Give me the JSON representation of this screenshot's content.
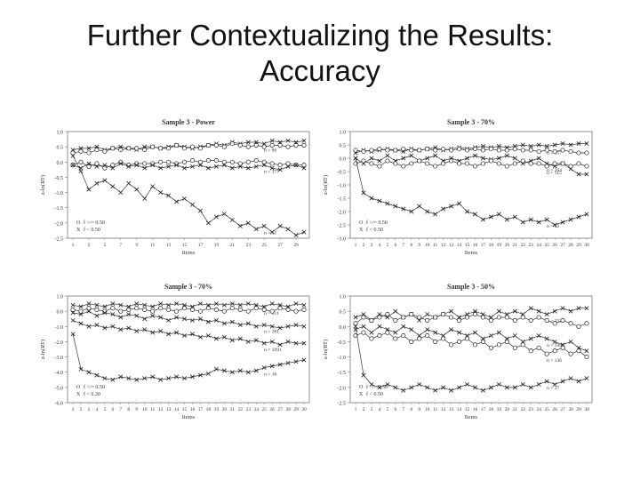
{
  "slide": {
    "title_line1": "Further Contextualizing the Results:",
    "title_line2": "Accuracy"
  },
  "chart_data": [
    {
      "type": "line",
      "title": "Sample 3 - Power",
      "xlabel": "Items",
      "ylabel": "z-ln(RT)",
      "ylim": [
        -2.5,
        1.0
      ],
      "y_ticks": [
        1.0,
        0.5,
        0.0,
        -0.5,
        -1.0,
        -1.5,
        -2.0,
        -2.5
      ],
      "x": [
        1,
        2,
        3,
        4,
        5,
        6,
        7,
        8,
        9,
        10,
        11,
        12,
        13,
        14,
        15,
        16,
        17,
        18,
        19,
        20,
        21,
        22,
        23,
        24,
        25,
        26,
        27,
        28,
        29,
        30
      ],
      "x_tick_labels": [
        "1",
        "3",
        "5",
        "7",
        "9",
        "11",
        "13",
        "15",
        "17",
        "19",
        "21",
        "23",
        "25",
        "27",
        "29"
      ],
      "legend": [
        {
          "marker": "O",
          "label": "f >/= 0.50"
        },
        {
          "marker": "X",
          "label": "f < 0.50"
        }
      ],
      "series": [
        {
          "marker": "X",
          "values": [
            0.4,
            0.45,
            0.45,
            0.5,
            0.4,
            0.45,
            0.5,
            0.45,
            0.4,
            0.5,
            0.5,
            0.45,
            0.5,
            0.55,
            0.5,
            0.45,
            0.5,
            0.55,
            0.6,
            0.55,
            0.65,
            0.6,
            0.65,
            0.65,
            0.6,
            0.7,
            0.65,
            0.7,
            0.65,
            0.7
          ],
          "n_label": "n = 86"
        },
        {
          "marker": "O",
          "values": [
            0.3,
            0.35,
            0.3,
            0.4,
            0.35,
            0.45,
            0.4,
            0.45,
            0.45,
            0.4,
            0.5,
            0.45,
            0.45,
            0.55,
            0.45,
            0.5,
            0.45,
            0.55,
            0.55,
            0.5,
            0.6,
            0.55,
            0.5,
            0.55,
            0.5,
            0.55,
            0.55,
            0.5,
            0.55,
            0.55
          ]
        },
        {
          "marker": "O",
          "values": [
            -0.1,
            0.0,
            -0.15,
            -0.05,
            -0.2,
            -0.1,
            0.0,
            -0.1,
            -0.05,
            -0.05,
            -0.05,
            0.0,
            0.0,
            -0.05,
            0.0,
            0.05,
            0.0,
            0.05,
            0.05,
            0.0,
            0.0,
            -0.05,
            0.0,
            0.05,
            0.0,
            -0.05,
            -0.1,
            -0.05,
            -0.1,
            -0.1
          ]
        },
        {
          "marker": "X",
          "values": [
            -0.1,
            -0.2,
            -0.05,
            -0.15,
            -0.1,
            -0.2,
            -0.05,
            -0.15,
            -0.1,
            -0.2,
            -0.1,
            -0.2,
            -0.15,
            -0.1,
            -0.2,
            -0.15,
            -0.1,
            -0.2,
            -0.15,
            -0.1,
            -0.2,
            -0.15,
            -0.2,
            -0.15,
            -0.1,
            -0.2,
            -0.25,
            -0.15,
            -0.1,
            -0.2
          ],
          "n_label": "n = 177"
        },
        {
          "marker": "X",
          "values": [
            0.2,
            -0.3,
            -0.9,
            -0.7,
            -0.6,
            -0.8,
            -1.0,
            -0.7,
            -0.9,
            -1.2,
            -0.8,
            -1.0,
            -1.1,
            -1.3,
            -1.2,
            -1.4,
            -1.6,
            -2.0,
            -1.8,
            -1.7,
            -1.9,
            -2.1,
            -2.0,
            -2.2,
            -2.1,
            -2.3,
            -2.1,
            -2.2,
            -2.4,
            -2.3
          ],
          "n_label": "n = 51"
        }
      ]
    },
    {
      "type": "line",
      "title": "Sample 3 - 70%",
      "xlabel": "Items",
      "ylabel": "z-ln(RT)",
      "ylim": [
        -3.0,
        1.0
      ],
      "y_ticks": [
        1.0,
        0.5,
        0.0,
        -0.5,
        -1.0,
        -1.5,
        -2.0,
        -2.5,
        -3.0
      ],
      "x": [
        1,
        2,
        3,
        4,
        5,
        6,
        7,
        8,
        9,
        10,
        11,
        12,
        13,
        14,
        15,
        16,
        17,
        18,
        19,
        20,
        21,
        22,
        23,
        24,
        25,
        26,
        27,
        28,
        29,
        30
      ],
      "x_tick_labels": [
        "1",
        "2",
        "3",
        "4",
        "5",
        "6",
        "7",
        "8",
        "9",
        "10",
        "11",
        "12",
        "13",
        "14",
        "15",
        "16",
        "17",
        "18",
        "19",
        "20",
        "21",
        "22",
        "23",
        "24",
        "25",
        "26",
        "27",
        "28",
        "29",
        "30"
      ],
      "legend": [
        {
          "marker": "O",
          "label": "f >/= 0.50"
        },
        {
          "marker": "X",
          "label": "f < 0.50"
        }
      ],
      "series": [
        {
          "marker": "X",
          "values": [
            0.2,
            0.3,
            0.25,
            0.3,
            0.35,
            0.3,
            0.25,
            0.35,
            0.3,
            0.35,
            0.4,
            0.3,
            0.35,
            0.4,
            0.35,
            0.4,
            0.45,
            0.4,
            0.45,
            0.4,
            0.45,
            0.5,
            0.45,
            0.5,
            0.45,
            0.5,
            0.55,
            0.5,
            0.55,
            0.55
          ],
          "n_label": "n = 357"
        },
        {
          "marker": "O",
          "values": [
            0.3,
            0.25,
            0.3,
            0.35,
            0.3,
            0.3,
            0.35,
            0.3,
            0.3,
            0.35,
            0.3,
            0.35,
            0.3,
            0.35,
            0.3,
            0.35,
            0.3,
            0.35,
            0.3,
            0.3,
            0.35,
            0.3,
            0.3,
            0.25,
            0.3,
            0.25,
            0.3,
            0.25,
            0.2,
            0.2
          ]
        },
        {
          "marker": "X",
          "values": [
            0.0,
            -0.2,
            0.0,
            -0.1,
            0.1,
            -0.1,
            0.0,
            0.1,
            -0.1,
            0.0,
            0.1,
            -0.1,
            0.0,
            -0.1,
            0.0,
            0.1,
            0.0,
            -0.05,
            0.0,
            0.1,
            0.0,
            -0.2,
            -0.1,
            0.0,
            -0.2,
            -0.3,
            -0.2,
            -0.4,
            -0.6,
            -0.6
          ],
          "n_label": "n = 264"
        },
        {
          "marker": "O",
          "values": [
            -0.2,
            -0.1,
            -0.2,
            -0.3,
            -0.1,
            -0.2,
            -0.3,
            -0.2,
            -0.1,
            -0.2,
            -0.3,
            -0.2,
            -0.1,
            -0.2,
            -0.2,
            -0.3,
            -0.2,
            -0.1,
            -0.2,
            -0.3,
            -0.2,
            -0.1,
            -0.2,
            -0.2,
            -0.3,
            -0.2,
            -0.2,
            -0.3,
            -0.2,
            -0.3
          ],
          "n_label": "n = 115"
        },
        {
          "marker": "X",
          "values": [
            0.0,
            -1.3,
            -1.5,
            -1.6,
            -1.7,
            -1.8,
            -1.9,
            -2.0,
            -1.8,
            -2.0,
            -2.1,
            -1.9,
            -1.8,
            -1.7,
            -2.0,
            -2.1,
            -2.3,
            -2.2,
            -2.1,
            -2.3,
            -2.2,
            -2.4,
            -2.3,
            -2.4,
            -2.3,
            -2.5,
            -2.4,
            -2.3,
            -2.2,
            -2.1
          ],
          "n_label": "n = 62"
        }
      ]
    },
    {
      "type": "line",
      "title": "Sample 3 - 70%",
      "xlabel": "Items",
      "ylabel": "z-ln(RT)",
      "ylim": [
        -6.0,
        1.0
      ],
      "y_ticks": [
        1.0,
        0.0,
        -1.0,
        -2.0,
        -3.0,
        -4.0,
        -5.0,
        -6.0
      ],
      "x": [
        1,
        2,
        3,
        4,
        5,
        6,
        7,
        8,
        9,
        10,
        11,
        12,
        13,
        14,
        15,
        16,
        17,
        18,
        19,
        20,
        21,
        22,
        23,
        24,
        25,
        26,
        27,
        28,
        29,
        30
      ],
      "x_tick_labels": [
        "1",
        "2",
        "3",
        "4",
        "5",
        "6",
        "7",
        "8",
        "9",
        "10",
        "11",
        "12",
        "13",
        "14",
        "15",
        "16",
        "17",
        "18",
        "19",
        "20",
        "21",
        "22",
        "23",
        "24",
        "25",
        "26",
        "27",
        "28",
        "29",
        "30"
      ],
      "legend": [
        {
          "marker": "O",
          "label": "f >/= 0.50"
        },
        {
          "marker": "X",
          "label": "f < 0.20"
        }
      ],
      "series": [
        {
          "marker": "X",
          "values": [
            0.4,
            0.3,
            0.5,
            0.4,
            0.3,
            0.5,
            0.4,
            0.3,
            0.5,
            0.4,
            0.3,
            0.5,
            0.4,
            0.5,
            0.4,
            0.3,
            0.5,
            0.4,
            0.5,
            0.4,
            0.5,
            0.4,
            0.5,
            0.4,
            0.3,
            0.5,
            0.4,
            0.3,
            0.5,
            0.4
          ],
          "n_label": "n = 511"
        },
        {
          "marker": "O",
          "values": [
            0.1,
            0.0,
            0.2,
            0.1,
            0.0,
            0.2,
            0.0,
            0.1,
            0.2,
            0.1,
            0.0,
            0.2,
            0.1,
            0.0,
            0.2,
            0.1,
            0.0,
            0.2,
            0.1,
            0.0,
            0.2,
            0.1,
            0.0,
            0.2,
            0.1,
            0.0,
            0.2,
            0.1,
            0.0,
            0.1
          ]
        },
        {
          "marker": "X",
          "values": [
            -0.1,
            -0.2,
            0.0,
            -0.3,
            -0.1,
            -0.2,
            -0.4,
            -0.2,
            -0.3,
            -0.5,
            -0.3,
            -0.4,
            -0.6,
            -0.4,
            -0.5,
            -0.6,
            -0.5,
            -0.7,
            -0.6,
            -0.8,
            -0.7,
            -0.9,
            -0.8,
            -1.0,
            -0.9,
            -1.0,
            -1.1,
            -1.0,
            -0.9,
            -1.0
          ],
          "n_label": "n = 381"
        },
        {
          "marker": "X",
          "values": [
            -0.6,
            -0.8,
            -1.0,
            -0.9,
            -1.1,
            -1.0,
            -1.2,
            -1.1,
            -1.3,
            -1.2,
            -1.4,
            -1.3,
            -1.5,
            -1.4,
            -1.6,
            -1.5,
            -1.7,
            -1.6,
            -1.8,
            -1.7,
            -1.9,
            -1.8,
            -2.0,
            -1.9,
            -2.1,
            -2.0,
            -2.2,
            -2.0,
            -2.1,
            -2.1
          ],
          "n_label": "n = 1091"
        },
        {
          "marker": "X",
          "values": [
            -1.5,
            -3.8,
            -4.0,
            -4.2,
            -4.4,
            -4.5,
            -4.3,
            -4.4,
            -4.5,
            -4.4,
            -4.3,
            -4.5,
            -4.4,
            -4.3,
            -4.4,
            -4.3,
            -4.2,
            -4.1,
            -3.8,
            -3.9,
            -4.0,
            -3.9,
            -4.0,
            -3.9,
            -3.7,
            -3.6,
            -3.5,
            -3.4,
            -3.3,
            -3.2
          ],
          "n_label": "n = 16"
        }
      ]
    },
    {
      "type": "line",
      "title": "Sample 3 - 50%",
      "xlabel": "Items",
      "ylabel": "z-ln(RT)",
      "ylim": [
        -2.5,
        1.0
      ],
      "y_ticks": [
        1.0,
        0.5,
        0.0,
        -0.5,
        -1.0,
        -1.5,
        -2.0,
        -2.5
      ],
      "x": [
        1,
        2,
        3,
        4,
        5,
        6,
        7,
        8,
        9,
        10,
        11,
        12,
        13,
        14,
        15,
        16,
        17,
        18,
        19,
        20,
        21,
        22,
        23,
        24,
        25,
        26,
        27,
        28,
        29,
        30
      ],
      "x_tick_labels": [
        "1",
        "2",
        "3",
        "4",
        "5",
        "6",
        "7",
        "8",
        "9",
        "10",
        "11",
        "12",
        "13",
        "14",
        "15",
        "16",
        "17",
        "18",
        "19",
        "20",
        "21",
        "22",
        "23",
        "24",
        "25",
        "26",
        "27",
        "28",
        "29",
        "30"
      ],
      "legend": [
        {
          "marker": "O",
          "label": "f >/= 0.50"
        },
        {
          "marker": "X",
          "label": "f < 0.50"
        }
      ],
      "series": [
        {
          "marker": "X",
          "values": [
            0.3,
            0.4,
            0.2,
            0.4,
            0.3,
            0.5,
            0.3,
            0.4,
            0.2,
            0.4,
            0.3,
            0.4,
            0.5,
            0.3,
            0.4,
            0.5,
            0.4,
            0.3,
            0.5,
            0.4,
            0.5,
            0.4,
            0.6,
            0.5,
            0.4,
            0.5,
            0.6,
            0.5,
            0.6,
            0.6
          ],
          "n_label": "n = 332"
        },
        {
          "marker": "O",
          "values": [
            0.1,
            0.3,
            0.2,
            0.3,
            0.4,
            0.2,
            0.3,
            0.4,
            0.3,
            0.2,
            0.3,
            0.4,
            0.3,
            0.2,
            0.3,
            0.4,
            0.3,
            0.2,
            0.3,
            0.3,
            0.2,
            0.3,
            0.2,
            0.3,
            0.2,
            0.1,
            0.2,
            0.1,
            0.0,
            0.1
          ]
        },
        {
          "marker": "X",
          "values": [
            -0.1,
            0.0,
            -0.2,
            0.0,
            -0.1,
            -0.2,
            0.0,
            -0.1,
            -0.3,
            -0.1,
            -0.2,
            -0.3,
            -0.1,
            -0.2,
            -0.3,
            -0.2,
            -0.4,
            -0.3,
            -0.2,
            -0.4,
            -0.3,
            -0.5,
            -0.4,
            -0.3,
            -0.4,
            -0.5,
            -0.6,
            -0.5,
            -0.7,
            -0.8
          ],
          "n_label": "n = 598"
        },
        {
          "marker": "O",
          "values": [
            -0.3,
            -0.2,
            -0.4,
            -0.3,
            -0.2,
            -0.4,
            -0.3,
            -0.5,
            -0.4,
            -0.3,
            -0.5,
            -0.4,
            -0.6,
            -0.5,
            -0.4,
            -0.6,
            -0.5,
            -0.7,
            -0.6,
            -0.5,
            -0.7,
            -0.6,
            -0.8,
            -0.7,
            -0.9,
            -0.8,
            -0.7,
            -0.9,
            -0.8,
            -1.0
          ],
          "n_label": "n = 136"
        },
        {
          "marker": "X",
          "values": [
            0.0,
            -1.6,
            -1.9,
            -2.0,
            -1.9,
            -2.0,
            -2.1,
            -2.0,
            -1.9,
            -2.0,
            -2.1,
            -2.0,
            -2.1,
            -2.0,
            -1.9,
            -2.0,
            -2.1,
            -2.0,
            -1.9,
            -2.0,
            -2.0,
            -1.9,
            -2.0,
            -1.9,
            -1.8,
            -1.9,
            -1.8,
            -1.7,
            -1.8,
            -1.7
          ],
          "n_label": "n = 37"
        }
      ]
    }
  ]
}
